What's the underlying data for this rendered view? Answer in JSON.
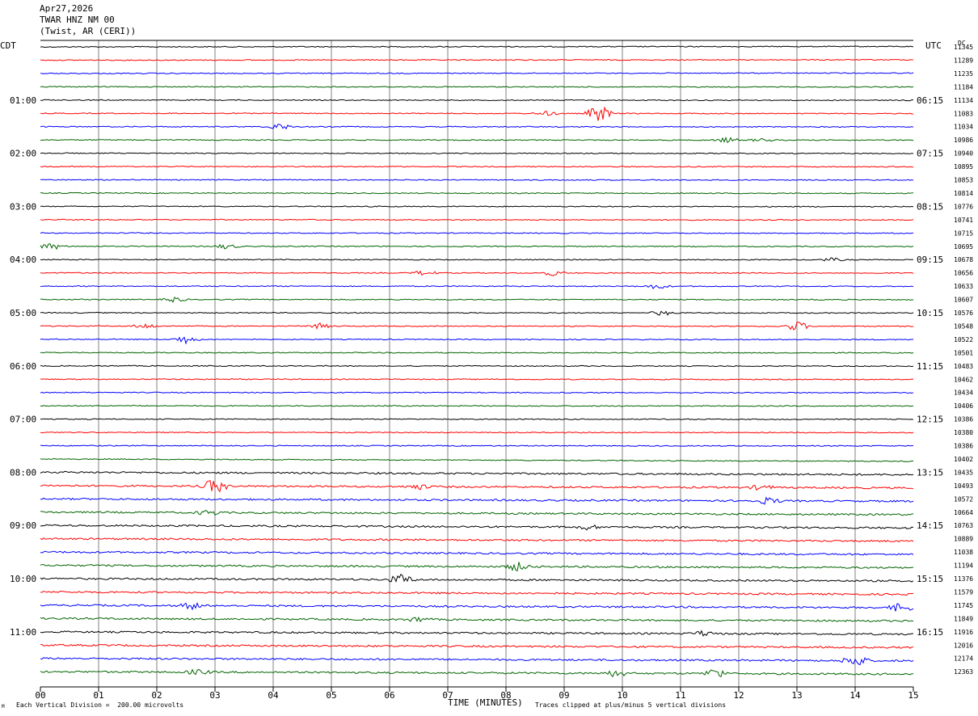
{
  "header": {
    "date": "Apr27,2026",
    "station": "TWAR HNZ NM 00",
    "location": "(Twist, AR (CERI))"
  },
  "labels": {
    "left_zone": "CDT",
    "right_zone": "UTC",
    "dc_header": "DC",
    "x_axis_title": "TIME (MINUTES)",
    "scale_note": "Each Vertical Division =  200.00 microvolts",
    "clip_note": "Traces clipped at plus/minus 5 vertical divisions",
    "corner_mark": "M"
  },
  "colors": {
    "trace_cycle": [
      "#000000",
      "#ff0000",
      "#0000ff",
      "#006400"
    ],
    "grid": "#808080",
    "frame": "#000000"
  },
  "chart_data": {
    "type": "line",
    "title": "TWAR HNZ NM 00",
    "xlabel": "TIME (MINUTES)",
    "xlim": [
      0,
      15
    ],
    "x_ticks": [
      "00",
      "01",
      "02",
      "03",
      "04",
      "05",
      "06",
      "07",
      "08",
      "09",
      "10",
      "11",
      "12",
      "13",
      "14",
      "15"
    ],
    "rows": 48,
    "row_minutes": 15,
    "left_hour_labels": [
      "01:00",
      "02:00",
      "03:00",
      "04:00",
      "05:00",
      "06:00",
      "07:00",
      "08:00",
      "09:00",
      "10:00",
      "11:00"
    ],
    "right_hour_labels": [
      "06:15",
      "07:15",
      "08:15",
      "09:15",
      "10:15",
      "11:15",
      "12:15",
      "13:15",
      "14:15",
      "15:15",
      "16:15"
    ],
    "dc_offsets": [
      11345,
      11289,
      11235,
      11184,
      11134,
      11083,
      11034,
      10986,
      10940,
      10895,
      10853,
      10814,
      10776,
      10741,
      10715,
      10695,
      10678,
      10656,
      10633,
      10607,
      10576,
      10548,
      10522,
      10501,
      10483,
      10462,
      10434,
      10406,
      10386,
      10380,
      10386,
      10402,
      10435,
      10493,
      10572,
      10664,
      10763,
      10889,
      11038,
      11194,
      11376,
      11579,
      11745,
      11849,
      11916,
      12016,
      12174,
      12363
    ],
    "scale_microvolts_per_division": 200.0,
    "clip_divisions": 5,
    "events": [
      {
        "row": 5,
        "minute": 9.6,
        "amp": 11
      },
      {
        "row": 5,
        "minute": 8.7,
        "amp": 2.5
      },
      {
        "row": 6,
        "minute": 4.1,
        "amp": 4
      },
      {
        "row": 7,
        "minute": 11.8,
        "amp": 3
      },
      {
        "row": 7,
        "minute": 12.4,
        "amp": 2
      },
      {
        "row": 15,
        "minute": 0.2,
        "amp": 4
      },
      {
        "row": 15,
        "minute": 3.2,
        "amp": 3
      },
      {
        "row": 16,
        "minute": 13.6,
        "amp": 2
      },
      {
        "row": 17,
        "minute": 6.6,
        "amp": 3
      },
      {
        "row": 17,
        "minute": 8.8,
        "amp": 3
      },
      {
        "row": 18,
        "minute": 10.6,
        "amp": 3
      },
      {
        "row": 19,
        "minute": 2.3,
        "amp": 3
      },
      {
        "row": 20,
        "minute": 10.7,
        "amp": 3
      },
      {
        "row": 21,
        "minute": 1.8,
        "amp": 3
      },
      {
        "row": 21,
        "minute": 4.8,
        "amp": 3
      },
      {
        "row": 21,
        "minute": 13.0,
        "amp": 6
      },
      {
        "row": 22,
        "minute": 2.5,
        "amp": 5
      },
      {
        "row": 33,
        "minute": 3.0,
        "amp": 9
      },
      {
        "row": 33,
        "minute": 6.5,
        "amp": 3
      },
      {
        "row": 33,
        "minute": 12.4,
        "amp": 3
      },
      {
        "row": 34,
        "minute": 12.5,
        "amp": 4
      },
      {
        "row": 35,
        "minute": 2.9,
        "amp": 3
      },
      {
        "row": 36,
        "minute": 9.4,
        "amp": 3
      },
      {
        "row": 39,
        "minute": 8.2,
        "amp": 5
      },
      {
        "row": 40,
        "minute": 6.2,
        "amp": 6
      },
      {
        "row": 42,
        "minute": 2.6,
        "amp": 4
      },
      {
        "row": 42,
        "minute": 14.8,
        "amp": 6
      },
      {
        "row": 43,
        "minute": 6.5,
        "amp": 3
      },
      {
        "row": 44,
        "minute": 11.4,
        "amp": 3
      },
      {
        "row": 46,
        "minute": 14.0,
        "amp": 8
      },
      {
        "row": 47,
        "minute": 2.7,
        "amp": 3
      },
      {
        "row": 47,
        "minute": 9.9,
        "amp": 4
      },
      {
        "row": 47,
        "minute": 11.6,
        "amp": 6
      }
    ]
  }
}
